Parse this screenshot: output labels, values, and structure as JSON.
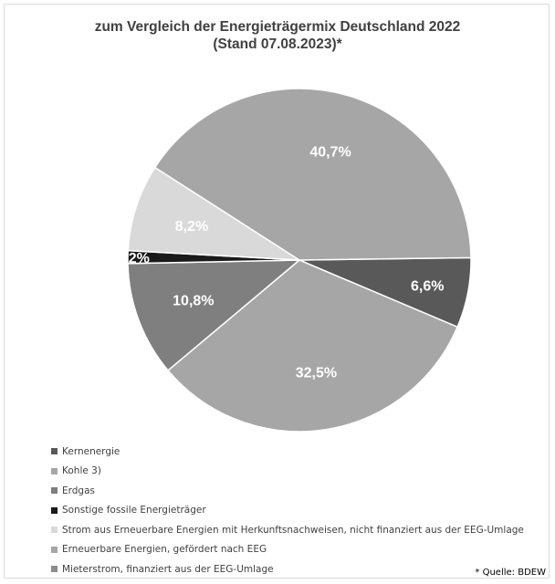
{
  "title_line1": "zum Vergleich der Energieträgermix Deutschland 2022",
  "title_line2": "(Stand 07.08.2023)*",
  "source_note": "* Quelle: BDEW",
  "chart_data": {
    "type": "pie",
    "title": "zum Vergleich der Energieträgermix Deutschland 2022 (Stand 07.08.2023)*",
    "slices": [
      {
        "name": "Kernenergie",
        "value": 6.6,
        "label": "6,6%",
        "color": "#595959"
      },
      {
        "name": "Kohle 3)",
        "value": 32.5,
        "label": "32,5%",
        "color": "#a6a6a6"
      },
      {
        "name": "Erdgas",
        "value": 10.8,
        "label": "10,8%",
        "color": "#7f7f7f"
      },
      {
        "name": "Sonstige fossile Energieträger",
        "value": 1.2,
        "label": "1,2%",
        "color": "#1a1a1a"
      },
      {
        "name": "Strom aus Erneuerbare Energien mit Herkunftsnachweisen, nicht finanziert aus der EEG-Umlage",
        "value": 8.2,
        "label": "8,2%",
        "color": "#d9d9d9"
      },
      {
        "name": "Erneuerbare Energien, gefördert nach EEG",
        "value": 40.7,
        "label": "40,7%",
        "color": "#a6a6a6"
      },
      {
        "name": "Mieterstrom, finanziert aus der EEG-Umlage",
        "value": 0.0,
        "label": "",
        "color": "#8c8c8c"
      }
    ],
    "legend_position": "bottom-left"
  }
}
